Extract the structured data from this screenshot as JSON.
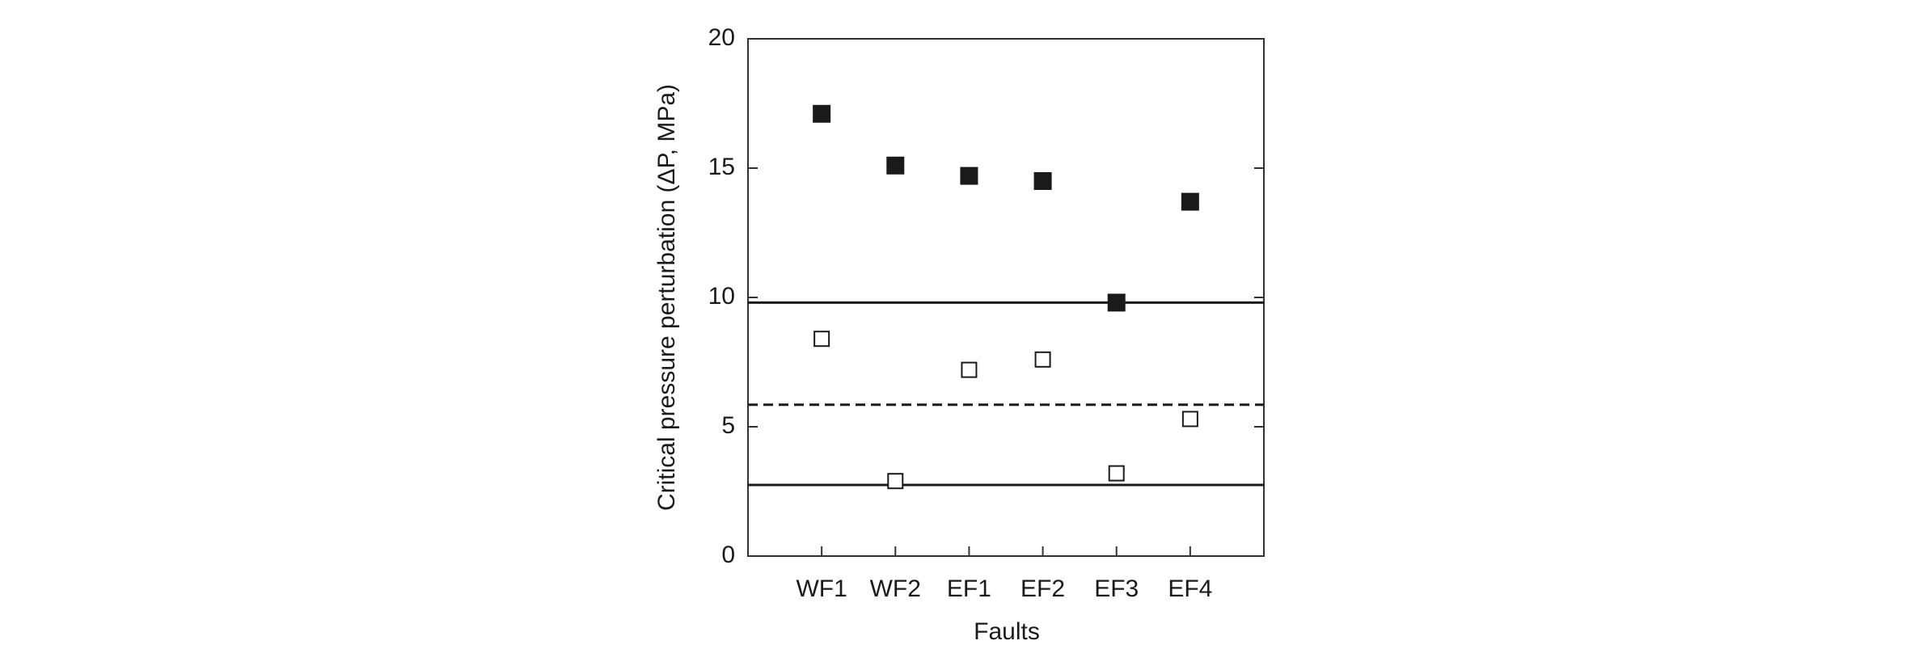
{
  "chart_data": {
    "type": "scatter",
    "xlabel": "Faults",
    "ylabel": "Critical pressure perturbation (ΔP, MPa)",
    "categories": [
      "WF1",
      "WF2",
      "EF1",
      "EF2",
      "EF3",
      "EF4"
    ],
    "series": [
      {
        "color": "#1a1a1a",
        "marker": "filled-square",
        "values": [
          17.1,
          15.1,
          14.7,
          14.5,
          9.8,
          13.7
        ]
      },
      {
        "color": "#1a1a1a",
        "marker": "open-square",
        "values": [
          8.4,
          2.9,
          7.2,
          7.6,
          3.2,
          5.3
        ]
      }
    ],
    "hlines": [
      {
        "value": 9.8,
        "dashed": false
      },
      {
        "value": 5.85,
        "dashed": true
      },
      {
        "value": 2.75,
        "dashed": false
      }
    ],
    "ylim": [
      0,
      20
    ],
    "yticks": [
      0,
      5,
      10,
      15,
      20
    ]
  }
}
